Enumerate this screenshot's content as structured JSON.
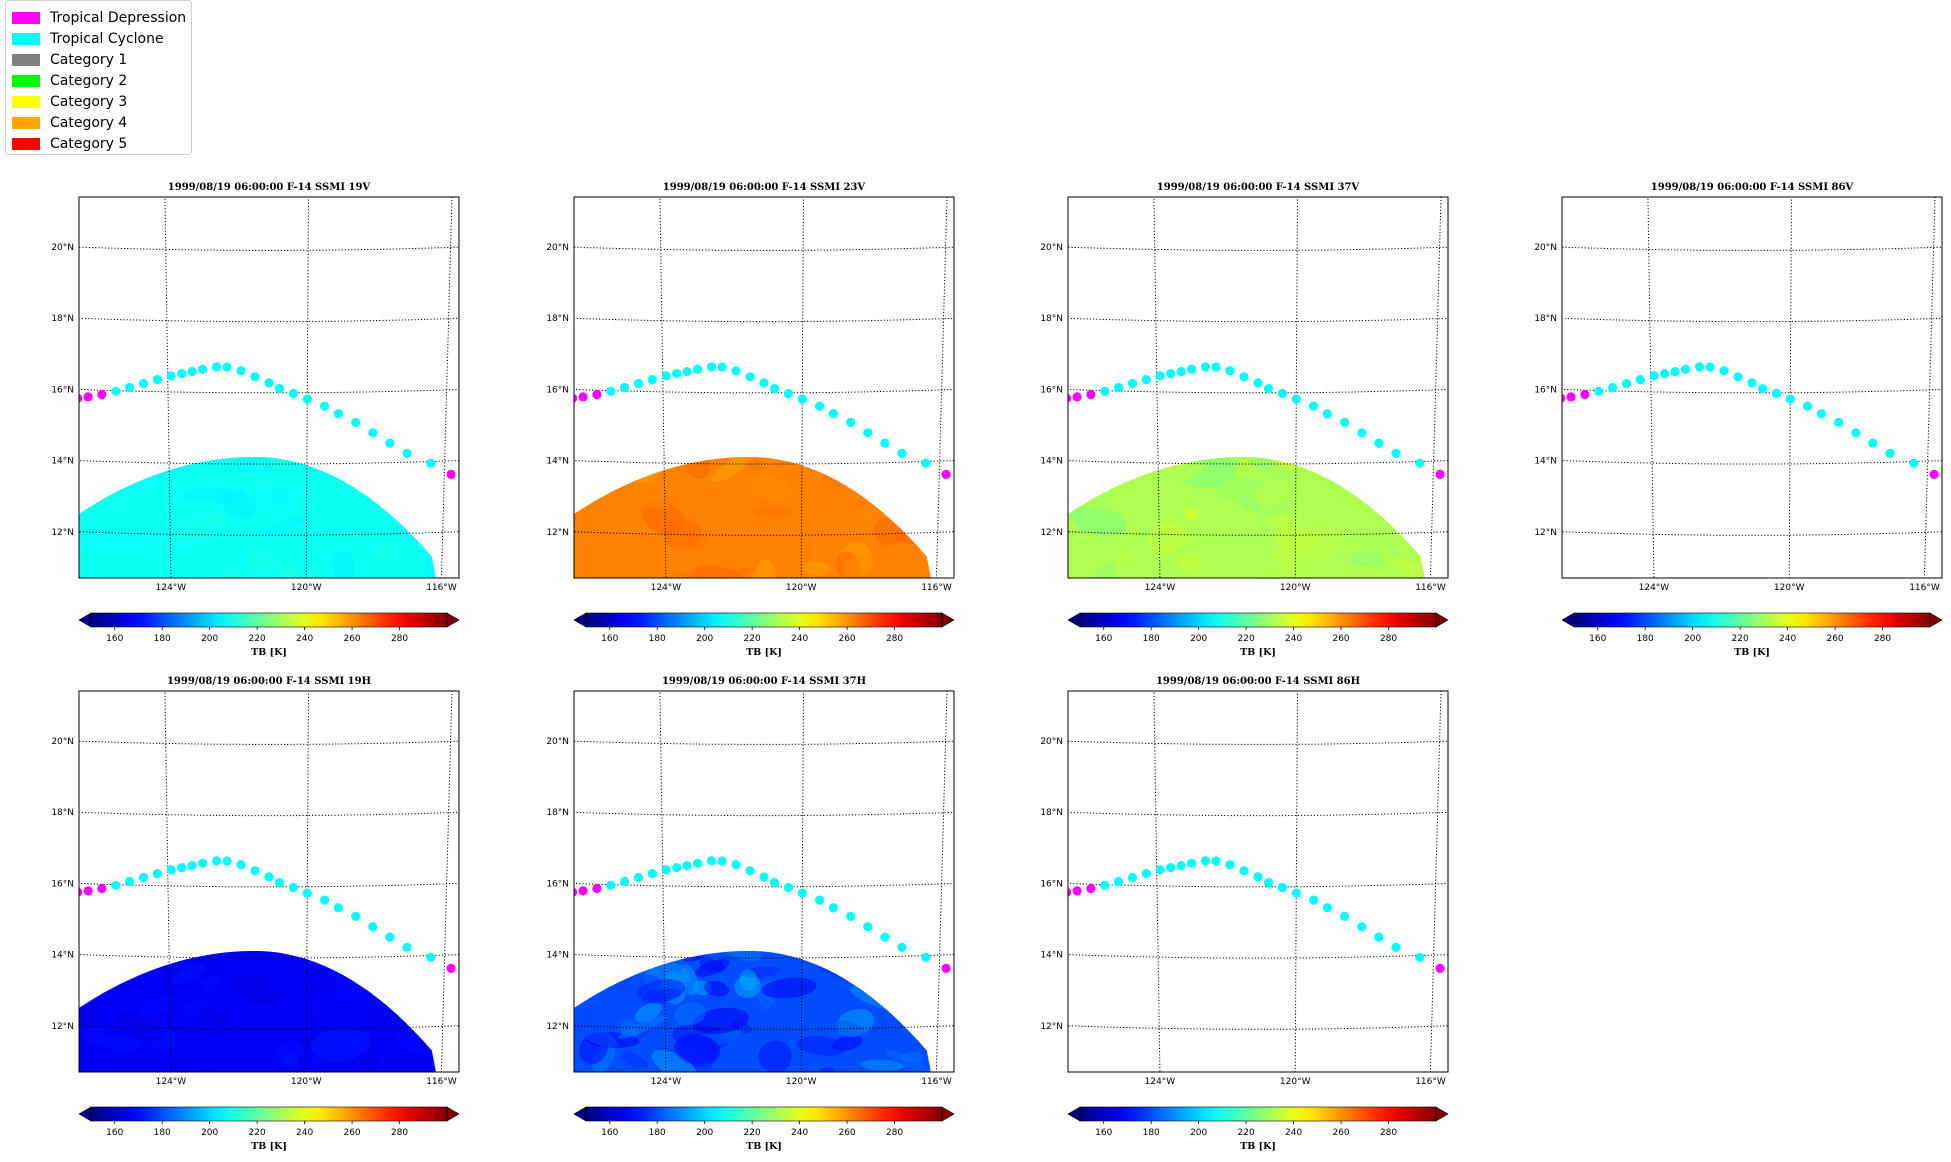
{
  "legend": {
    "items": [
      {
        "label": "Tropical Depression",
        "color": "#ff00ff"
      },
      {
        "label": "Tropical Cyclone",
        "color": "#00ffff"
      },
      {
        "label": "Category 1",
        "color": "#808080"
      },
      {
        "label": "Category 2",
        "color": "#00ff00"
      },
      {
        "label": "Category 3",
        "color": "#ffff00"
      },
      {
        "label": "Category 4",
        "color": "#ffa500"
      },
      {
        "label": "Category 5",
        "color": "#ff0000"
      }
    ]
  },
  "chart_data": [
    {
      "type": "heatmap",
      "title": "1999/08/19 06:00:00  F-14 SSMI 19V",
      "colorbar_label": "TB [K]",
      "swath_tb": 208,
      "swath_variability": 4,
      "has_swath": true
    },
    {
      "type": "heatmap",
      "title": "1999/08/19 06:00:00  F-14 SSMI 23V",
      "colorbar_label": "TB [K]",
      "swath_tb": 262,
      "swath_variability": 5,
      "has_swath": true
    },
    {
      "type": "heatmap",
      "title": "1999/08/19 06:00:00  F-14 SSMI 37V",
      "colorbar_label": "TB [K]",
      "swath_tb": 232,
      "swath_variability": 8,
      "has_swath": true
    },
    {
      "type": "heatmap",
      "title": "1999/08/19 06:00:00  F-14 SSMI 86V",
      "colorbar_label": "TB [K]",
      "has_swath": false
    },
    {
      "type": "heatmap",
      "title": "1999/08/19 06:00:00  F-14 SSMI 19H",
      "colorbar_label": "TB [K]",
      "swath_tb": 168,
      "swath_variability": 4,
      "has_swath": true
    },
    {
      "type": "heatmap",
      "title": "1999/08/19 06:00:00  F-14 SSMI 37H",
      "colorbar_label": "TB [K]",
      "swath_tb": 180,
      "swath_variability": 14,
      "has_swath": true
    },
    {
      "type": "heatmap",
      "title": "1999/08/19 06:00:00  F-14 SSMI 86H",
      "colorbar_label": "TB [K]",
      "has_swath": false
    }
  ],
  "shared": {
    "xlim_lon": [
      -126.6,
      -115.6
    ],
    "ylim_lat": [
      10.8,
      21.5
    ],
    "lat_ticks": [
      12,
      14,
      16,
      18,
      20
    ],
    "lat_tick_labels": [
      "12°N",
      "14°N",
      "16°N",
      "18°N",
      "20°N"
    ],
    "lon_ticks": [
      -124,
      -120,
      -116
    ],
    "lon_tick_labels": [
      "124°W",
      "120°W",
      "116°W"
    ],
    "colorbar_range": [
      150,
      300
    ],
    "colorbar_ticks": [
      160,
      180,
      200,
      220,
      240,
      260,
      280
    ],
    "colorbar_tick_labels": [
      "160",
      "180",
      "200",
      "220",
      "240",
      "260",
      "280"
    ],
    "colormap": "jet",
    "grid": "dotted",
    "track": [
      {
        "lon": -126.6,
        "lat": 15.75,
        "cat": "TD"
      },
      {
        "lon": -126.3,
        "lat": 15.8,
        "cat": "TD"
      },
      {
        "lon": -125.9,
        "lat": 15.88,
        "cat": "TD"
      },
      {
        "lon": -125.5,
        "lat": 15.98,
        "cat": "TC"
      },
      {
        "lon": -125.1,
        "lat": 16.1,
        "cat": "TC"
      },
      {
        "lon": -124.7,
        "lat": 16.22,
        "cat": "TC"
      },
      {
        "lon": -124.3,
        "lat": 16.34,
        "cat": "TC"
      },
      {
        "lon": -123.9,
        "lat": 16.45,
        "cat": "TC"
      },
      {
        "lon": -123.6,
        "lat": 16.52,
        "cat": "TC"
      },
      {
        "lon": -123.3,
        "lat": 16.58,
        "cat": "TC"
      },
      {
        "lon": -123.0,
        "lat": 16.65,
        "cat": "TC"
      },
      {
        "lon": -122.6,
        "lat": 16.72,
        "cat": "TC"
      },
      {
        "lon": -122.3,
        "lat": 16.72,
        "cat": "TC"
      },
      {
        "lon": -121.9,
        "lat": 16.62,
        "cat": "TC"
      },
      {
        "lon": -121.5,
        "lat": 16.45,
        "cat": "TC"
      },
      {
        "lon": -121.1,
        "lat": 16.28,
        "cat": "TC"
      },
      {
        "lon": -120.8,
        "lat": 16.12,
        "cat": "TC"
      },
      {
        "lon": -120.4,
        "lat": 15.98,
        "cat": "TC"
      },
      {
        "lon": -120.0,
        "lat": 15.82,
        "cat": "TC"
      },
      {
        "lon": -119.5,
        "lat": 15.62,
        "cat": "TC"
      },
      {
        "lon": -119.1,
        "lat": 15.4,
        "cat": "TC"
      },
      {
        "lon": -118.6,
        "lat": 15.15,
        "cat": "TC"
      },
      {
        "lon": -118.1,
        "lat": 14.85,
        "cat": "TC"
      },
      {
        "lon": -117.6,
        "lat": 14.55,
        "cat": "TC"
      },
      {
        "lon": -117.1,
        "lat": 14.25,
        "cat": "TC"
      },
      {
        "lon": -116.4,
        "lat": 13.95,
        "cat": "TC"
      },
      {
        "lon": -115.8,
        "lat": 13.62,
        "cat": "TD"
      }
    ]
  }
}
